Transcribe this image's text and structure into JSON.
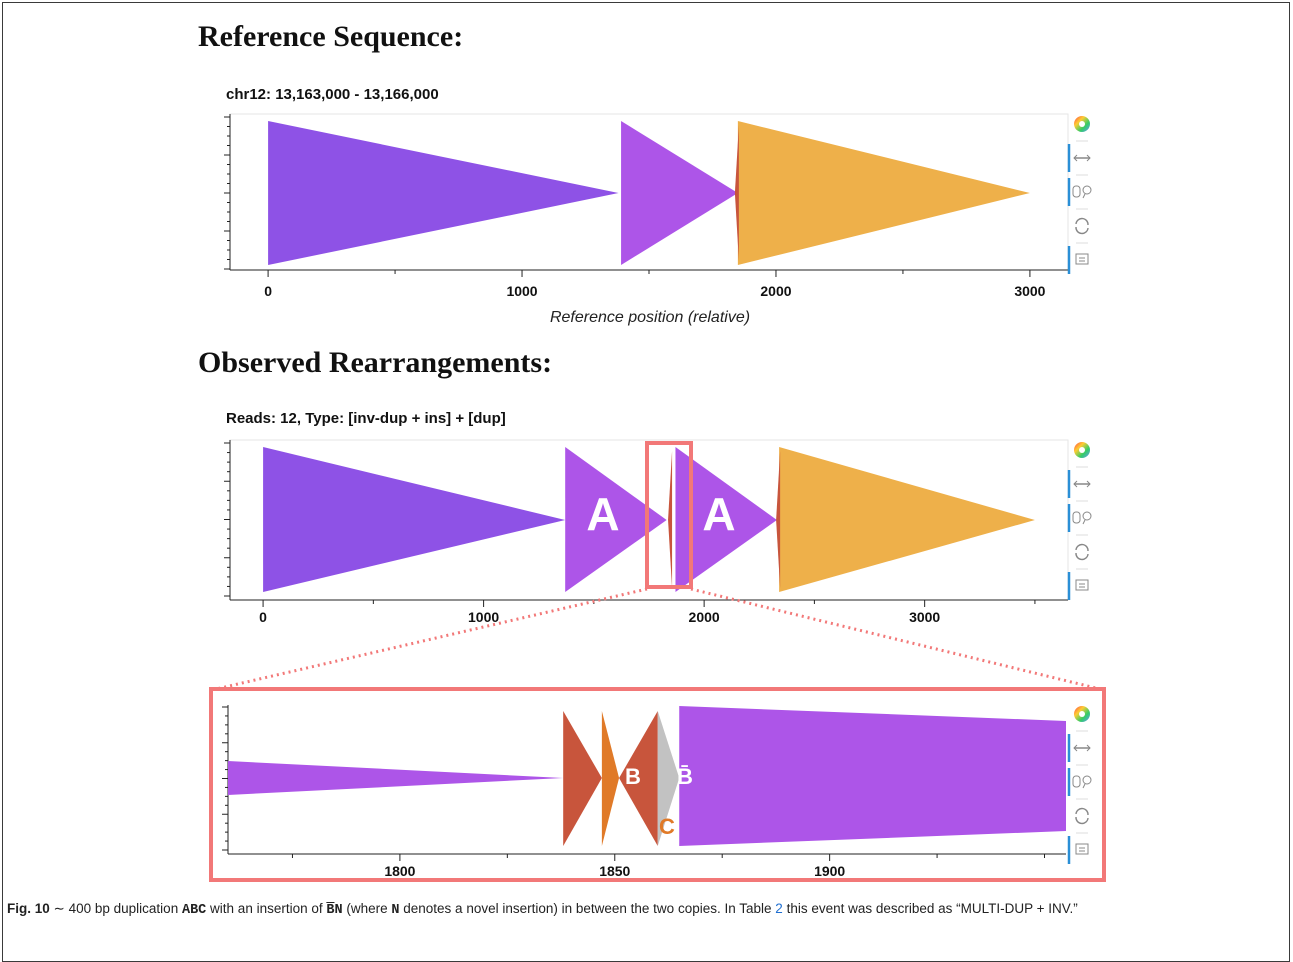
{
  "headings": {
    "reference": "Reference Sequence:",
    "observed": "Observed Rearrangements:"
  },
  "panels": {
    "reference": {
      "title": "chr12: 13,163,000 - 13,166,000",
      "xlabel": "Reference position (relative)",
      "ticks": [
        "0",
        "1000",
        "2000",
        "3000"
      ]
    },
    "observed": {
      "title": "Reads: 12, Type: [inv-dup + ins] + [dup]",
      "ticks": [
        "0",
        "1000",
        "2000",
        "3000"
      ],
      "labels": [
        "A",
        "A"
      ]
    },
    "zoom": {
      "ticks": [
        "1800",
        "1850",
        "1900"
      ],
      "labels": [
        "B",
        "B̄",
        "C"
      ]
    }
  },
  "toolbar": {
    "icons": [
      "color-wheel-icon",
      "pan-icon",
      "wheel-zoom-icon",
      "reset-icon",
      "hover-icon"
    ]
  },
  "colors": {
    "purple_dark": "#8e52e6",
    "purple_light": "#ad55e8",
    "orange": "#eeb04a",
    "rust": "#c8553c",
    "gray": "#c2c2c2",
    "highlight": "#f27878"
  },
  "chart_data": [
    {
      "type": "other",
      "title": "chr12: 13,163,000 - 13,166,000",
      "xlabel": "Reference position (relative)",
      "xlim": [
        -150,
        3150
      ],
      "segments": [
        {
          "start": 0,
          "end": 1380,
          "color": "#8e52e6",
          "direction": "forward"
        },
        {
          "start": 1390,
          "end": 1850,
          "color": "#ad55e8",
          "direction": "forward"
        },
        {
          "start": 1850,
          "end": 3000,
          "color": "#eeb04a",
          "direction": "forward"
        }
      ]
    },
    {
      "type": "other",
      "title": "Reads: 12, Type: [inv-dup + ins] + [dup]",
      "xlim": [
        -150,
        3650
      ],
      "segments": [
        {
          "start": 0,
          "end": 1370,
          "color": "#8e52e6",
          "direction": "forward",
          "label": ""
        },
        {
          "start": 1370,
          "end": 1830,
          "color": "#ad55e8",
          "direction": "forward",
          "label": "A"
        },
        {
          "start": 1870,
          "end": 2330,
          "color": "#ad55e8",
          "direction": "forward",
          "label": "A"
        },
        {
          "start": 2340,
          "end": 3500,
          "color": "#eeb04a",
          "direction": "forward",
          "label": ""
        }
      ]
    },
    {
      "type": "other",
      "xlim": [
        1760,
        1955
      ],
      "segments": [
        {
          "start": 1760,
          "end": 1838,
          "color": "#ad55e8",
          "direction": "forward",
          "label": ""
        },
        {
          "start": 1838,
          "end": 1847,
          "color": "#c8553c",
          "direction": "forward",
          "label": "B"
        },
        {
          "start": 1847,
          "end": 1851,
          "color": "#e07a28",
          "direction": "forward",
          "label": "C"
        },
        {
          "start": 1851,
          "end": 1860,
          "color": "#c8553c",
          "direction": "reverse",
          "label": "B̄"
        },
        {
          "start": 1860,
          "end": 1865,
          "color": "#c2c2c2",
          "direction": "forward",
          "label": ""
        },
        {
          "start": 1865,
          "end": 1955,
          "color": "#ad55e8",
          "direction": "forward",
          "label": ""
        }
      ]
    }
  ],
  "caption": {
    "label": "Fig. 10",
    "tilde": "∼",
    "part1": "400 bp duplication",
    "abc": "ABC",
    "part2": "with an insertion of",
    "bn_b": "B",
    "bn_n": "N",
    "part3": "(where",
    "n": "N",
    "part4": "denotes a novel insertion) in between the two copies. In Table",
    "table": "2",
    "part5": "this event was described as “MULTI-DUP + INV.”"
  }
}
